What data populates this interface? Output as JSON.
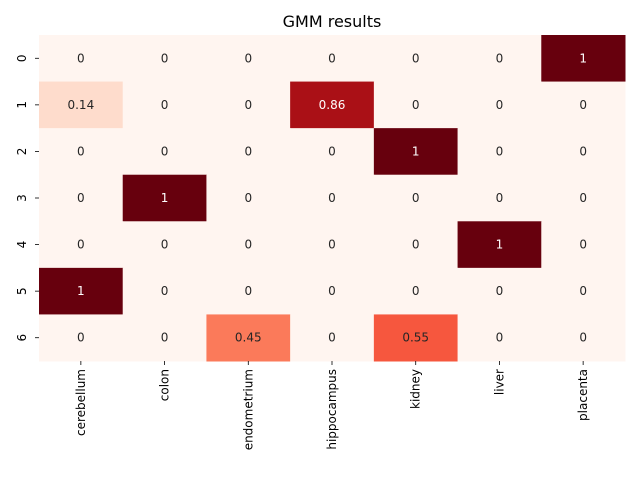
{
  "chart_data": {
    "type": "heatmap",
    "title": "GMM results",
    "xlabel": "",
    "ylabel": "",
    "x_categories": [
      "cerebellum",
      "colon",
      "endometrium",
      "hippocampus",
      "kidney",
      "liver",
      "placenta"
    ],
    "y_categories": [
      "0",
      "1",
      "2",
      "3",
      "4",
      "5",
      "6"
    ],
    "values": [
      [
        0,
        0,
        0,
        0,
        0,
        0,
        1
      ],
      [
        0.14,
        0,
        0,
        0.86,
        0,
        0,
        0
      ],
      [
        0,
        0,
        0,
        0,
        1,
        0,
        0
      ],
      [
        0,
        1,
        0,
        0,
        0,
        0,
        0
      ],
      [
        0,
        0,
        0,
        0,
        0,
        1,
        0
      ],
      [
        1,
        0,
        0,
        0,
        0,
        0,
        0
      ],
      [
        0,
        0,
        0.45,
        0,
        0.55,
        0,
        0
      ]
    ],
    "value_labels": [
      [
        "0",
        "0",
        "0",
        "0",
        "0",
        "0",
        "1"
      ],
      [
        "0.14",
        "0",
        "0",
        "0.86",
        "0",
        "0",
        "0"
      ],
      [
        "0",
        "0",
        "0",
        "0",
        "1",
        "0",
        "0"
      ],
      [
        "0",
        "1",
        "0",
        "0",
        "0",
        "0",
        "0"
      ],
      [
        "0",
        "0",
        "0",
        "0",
        "0",
        "1",
        "0"
      ],
      [
        "1",
        "0",
        "0",
        "0",
        "0",
        "0",
        "0"
      ],
      [
        "0",
        "0",
        "0.45",
        "0",
        "0.55",
        "0",
        "0"
      ]
    ],
    "colormap": "Reds",
    "vmin": 0,
    "vmax": 1,
    "colorbar": false,
    "grid": false,
    "annotated": true
  }
}
